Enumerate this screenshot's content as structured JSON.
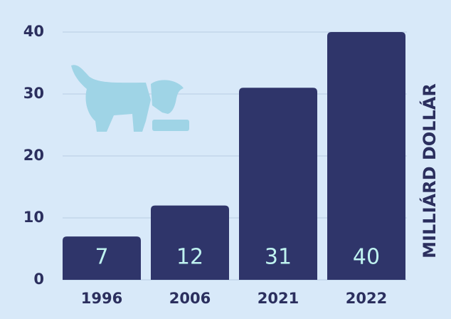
{
  "chart_data": {
    "type": "bar",
    "y_label": "MILLIÁRD DOLLÁR",
    "categories": [
      "1996",
      "2006",
      "2021",
      "2022"
    ],
    "values": [
      7,
      12,
      31,
      40
    ],
    "color": "#2f356a",
    "value_label_color": "#bff3f0",
    "ylim": [
      0,
      40
    ],
    "yticks": [
      0,
      10,
      20,
      30,
      40
    ],
    "grid": true
  }
}
